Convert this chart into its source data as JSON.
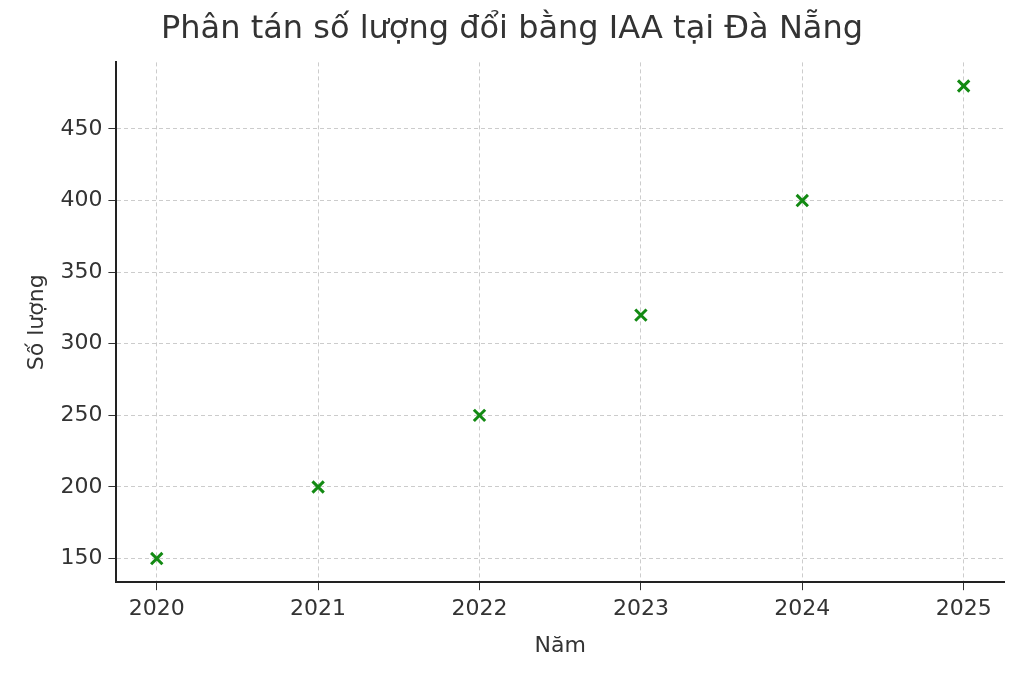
{
  "chart_data": {
    "type": "scatter",
    "title": "Phân tán số lượng đổi bằng IAA tại Đà Nẵng",
    "xlabel": "Năm",
    "ylabel": "Số lượng",
    "x": [
      2020,
      2021,
      2022,
      2023,
      2024,
      2025
    ],
    "series": [
      {
        "color": "#138a13",
        "values": [
          150,
          200,
          250,
          320,
          400,
          480
        ]
      }
    ],
    "xlim": [
      2019.75,
      2025.25
    ],
    "xticks": [
      2020,
      2021,
      2022,
      2023,
      2024,
      2025
    ],
    "ylim": [
      133.5,
      496.5
    ],
    "yticks": [
      150,
      200,
      250,
      300,
      350,
      400,
      450
    ],
    "grid": true,
    "marker": "cross",
    "line_style": "dashed",
    "legend": false
  }
}
